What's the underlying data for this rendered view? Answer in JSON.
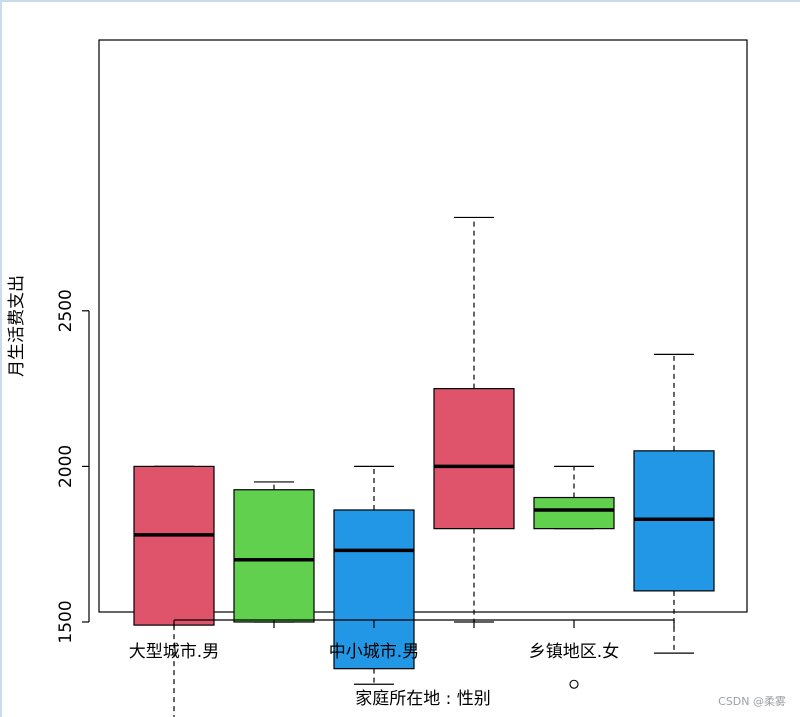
{
  "chart_data": {
    "type": "boxplot",
    "xlabel": "家庭所在地 : 性别",
    "ylabel": "月生活费支出",
    "ylim": [
      1050,
      2870
    ],
    "yticks": [
      1500,
      2000,
      2500
    ],
    "xtick_labels": [
      "大型城市.男",
      "",
      "中小城市.男",
      "",
      "乡镇地区.女",
      ""
    ],
    "boxes": [
      {
        "whisker_low": 1100,
        "q1": 1490,
        "median": 1780,
        "q3": 2000,
        "whisker_high": 2000,
        "outliers": [],
        "color": "#DF536B"
      },
      {
        "whisker_low": 1500,
        "q1": 1500,
        "median": 1700,
        "q3": 1925,
        "whisker_high": 1950,
        "outliers": [],
        "color": "#61D04F"
      },
      {
        "whisker_low": 1300,
        "q1": 1350,
        "median": 1730,
        "q3": 1860,
        "whisker_high": 2000,
        "outliers": [],
        "color": "#2297E6"
      },
      {
        "whisker_low": 1500,
        "q1": 1800,
        "median": 2000,
        "q3": 2250,
        "whisker_high": 2800,
        "outliers": [],
        "color": "#DF536B"
      },
      {
        "whisker_low": 1800,
        "q1": 1800,
        "median": 1860,
        "q3": 1900,
        "whisker_high": 2000,
        "outliers": [
          1300
        ],
        "color": "#61D04F"
      },
      {
        "whisker_low": 1400,
        "q1": 1600,
        "median": 1830,
        "q3": 2050,
        "whisker_high": 2360,
        "outliers": [],
        "color": "#2297E6"
      }
    ]
  },
  "watermark": "CSDN @柔雾"
}
